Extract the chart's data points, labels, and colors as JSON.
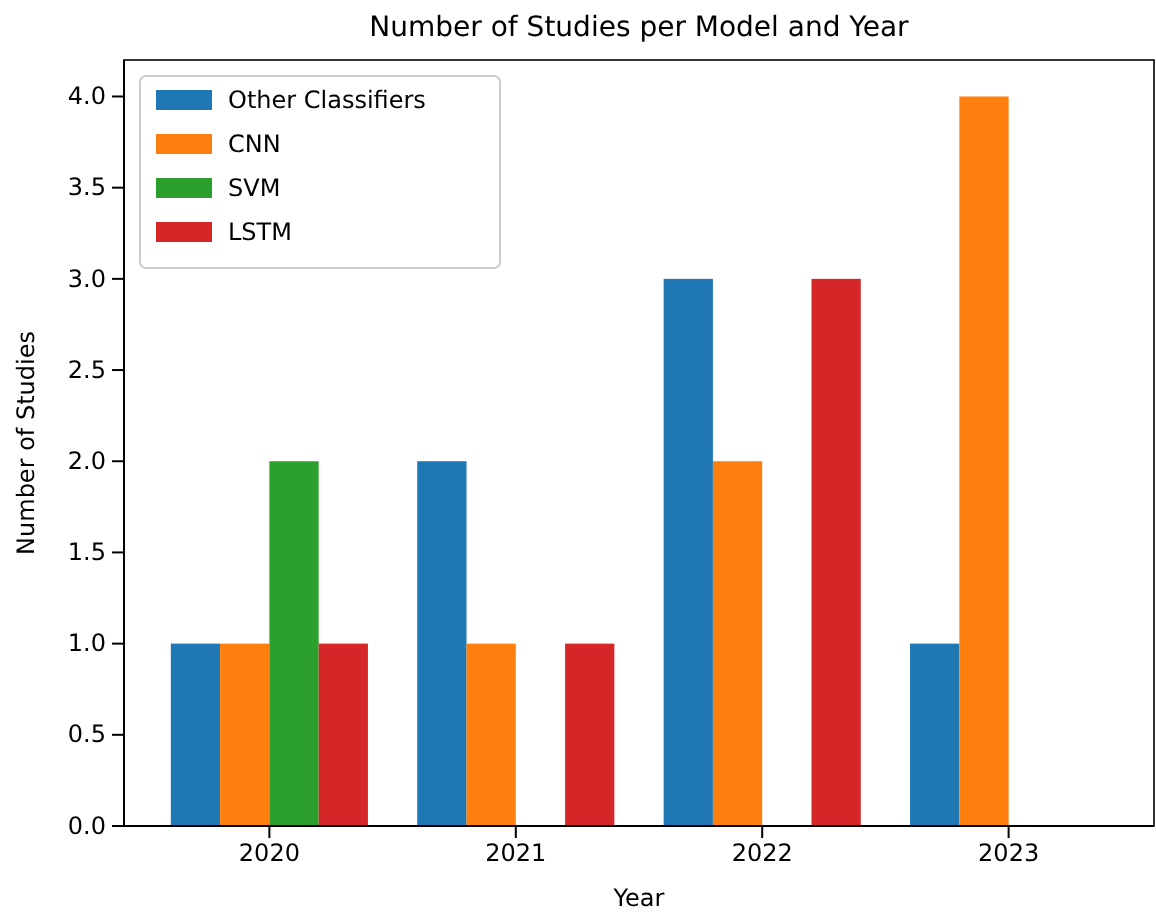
{
  "chart_data": {
    "type": "bar",
    "title": "Number of Studies per Model and Year",
    "xlabel": "Year",
    "ylabel": "Number of Studies",
    "categories": [
      "2020",
      "2021",
      "2022",
      "2023"
    ],
    "series": [
      {
        "name": "Other Classifiers",
        "color": "#1f77b4",
        "values": [
          1,
          2,
          3,
          1
        ]
      },
      {
        "name": "CNN",
        "color": "#ff7f0e",
        "values": [
          1,
          1,
          2,
          4
        ]
      },
      {
        "name": "SVM",
        "color": "#2ca02c",
        "values": [
          2,
          0,
          0,
          0
        ]
      },
      {
        "name": "LSTM",
        "color": "#d62728",
        "values": [
          1,
          1,
          3,
          0
        ]
      }
    ],
    "ylim": [
      0,
      4.2
    ],
    "yticks": [
      {
        "value": 0,
        "label": "0.0"
      },
      {
        "value": 0.5,
        "label": "0.5"
      },
      {
        "value": 1,
        "label": "1.0"
      },
      {
        "value": 1.5,
        "label": "1.5"
      },
      {
        "value": 2,
        "label": "2.0"
      },
      {
        "value": 2.5,
        "label": "2.5"
      },
      {
        "value": 3,
        "label": "3.0"
      },
      {
        "value": 3.5,
        "label": "3.5"
      },
      {
        "value": 4,
        "label": "4.0"
      }
    ],
    "legend": "top left"
  }
}
